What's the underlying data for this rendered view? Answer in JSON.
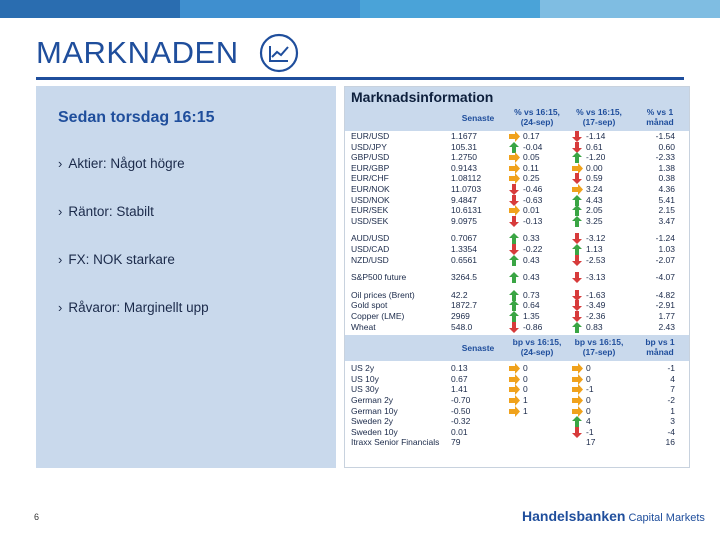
{
  "colors": {
    "brand": "#1f4e9c",
    "panel": "#c9d9ec",
    "up": "#3aa544",
    "down": "#d73b3b",
    "flat": "#f0a21c"
  },
  "topbar_colors": [
    "#2a6db0",
    "#3f8fcf",
    "#4aa3d8",
    "#7fbde2",
    "#b9d6ea"
  ],
  "title": "MARKNADEN",
  "title_icon": "line-chart-icon",
  "subtitle": "Sedan torsdag 16:15",
  "bullets": [
    "Aktier: Något högre",
    "Räntor: Stabilt",
    "FX: NOK starkare",
    "Råvaror: Marginellt upp"
  ],
  "market": {
    "title": "Marknadsinformation",
    "headers1": [
      "Senaste",
      "% vs 16:15, (24-sep)",
      "% vs 16:15, (17-sep)",
      "% vs 1 månad"
    ],
    "headers2": [
      "Senaste",
      "bp vs 16:15, (24-sep)",
      "bp vs 16:15, (17-sep)",
      "bp vs 1 månad"
    ],
    "groups": [
      [
        {
          "name": "EUR/USD",
          "last": "1.1677",
          "a1": "flat",
          "v1": "0.17",
          "a2": "down",
          "v2": "-1.14",
          "v3": "-1.54"
        },
        {
          "name": "USD/JPY",
          "last": "105.31",
          "a1": "up",
          "v1": "-0.04",
          "a2": "down",
          "v2": "0.61",
          "v3": "0.60"
        },
        {
          "name": "GBP/USD",
          "last": "1.2750",
          "a1": "flat",
          "v1": "0.05",
          "a2": "up",
          "v2": "-1.20",
          "v3": "-2.33"
        },
        {
          "name": "EUR/GBP",
          "last": "0.9143",
          "a1": "flat",
          "v1": "0.11",
          "a2": "flat",
          "v2": "0.00",
          "v3": "1.38"
        },
        {
          "name": "EUR/CHF",
          "last": "1.08112",
          "a1": "flat",
          "v1": "0.25",
          "a2": "down",
          "v2": "0.59",
          "v3": "0.38"
        },
        {
          "name": "EUR/NOK",
          "last": "11.0703",
          "a1": "down",
          "v1": "-0.46",
          "a2": "flat",
          "v2": "3.24",
          "v3": "4.36"
        },
        {
          "name": "USD/NOK",
          "last": "9.4847",
          "a1": "down",
          "v1": "-0.63",
          "a2": "up",
          "v2": "4.43",
          "v3": "5.41"
        },
        {
          "name": "EUR/SEK",
          "last": "10.6131",
          "a1": "flat",
          "v1": "0.01",
          "a2": "up",
          "v2": "2.05",
          "v3": "2.15"
        },
        {
          "name": "USD/SEK",
          "last": "9.0975",
          "a1": "down",
          "v1": "-0.13",
          "a2": "up",
          "v2": "3.25",
          "v3": "3.47"
        }
      ],
      [
        {
          "name": "AUD/USD",
          "last": "0.7067",
          "a1": "up",
          "v1": "0.33",
          "a2": "down",
          "v2": "-3.12",
          "v3": "-1.24"
        },
        {
          "name": "USD/CAD",
          "last": "1.3354",
          "a1": "down",
          "v1": "-0.22",
          "a2": "up",
          "v2": "1.13",
          "v3": "1.03"
        },
        {
          "name": "NZD/USD",
          "last": "0.6561",
          "a1": "up",
          "v1": "0.43",
          "a2": "down",
          "v2": "-2.53",
          "v3": "-2.07"
        }
      ],
      [
        {
          "name": "S&P500 future",
          "last": "3264.5",
          "a1": "up",
          "v1": "0.43",
          "a2": "down",
          "v2": "-3.13",
          "v3": "-4.07"
        }
      ],
      [
        {
          "name": "Oil prices (Brent)",
          "last": "42.2",
          "a1": "up",
          "v1": "0.73",
          "a2": "down",
          "v2": "-1.63",
          "v3": "-4.82"
        },
        {
          "name": "Gold spot",
          "last": "1872.7",
          "a1": "up",
          "v1": "0.64",
          "a2": "down",
          "v2": "-3.49",
          "v3": "-2.91"
        },
        {
          "name": "Copper (LME)",
          "last": "2969",
          "a1": "up",
          "v1": "1.35",
          "a2": "down",
          "v2": "-2.36",
          "v3": "1.77"
        },
        {
          "name": "Wheat",
          "last": "548.0",
          "a1": "down",
          "v1": "-0.86",
          "a2": "up",
          "v2": "0.83",
          "v3": "2.43"
        }
      ]
    ],
    "rates": [
      {
        "name": "US 2y",
        "last": "0.13",
        "a1": "flat",
        "v1": "0",
        "a2": "flat",
        "v2": "0",
        "v3": "-1"
      },
      {
        "name": "US 10y",
        "last": "0.67",
        "a1": "flat",
        "v1": "0",
        "a2": "flat",
        "v2": "0",
        "v3": "4"
      },
      {
        "name": "US 30y",
        "last": "1.41",
        "a1": "flat",
        "v1": "0",
        "a2": "flat",
        "v2": "-1",
        "v3": "7"
      },
      {
        "name": "German 2y",
        "last": "-0.70",
        "a1": "flat",
        "v1": "1",
        "a2": "flat",
        "v2": "0",
        "v3": "-2"
      },
      {
        "name": "German 10y",
        "last": "-0.50",
        "a1": "flat",
        "v1": "1",
        "a2": "flat",
        "v2": "0",
        "v3": "1"
      },
      {
        "name": "Sweden 2y",
        "last": "-0.32",
        "a1": "",
        "v1": "",
        "a2": "up",
        "v2": "4",
        "v3": "3"
      },
      {
        "name": "Sweden 10y",
        "last": "0.01",
        "a1": "",
        "v1": "",
        "a2": "down",
        "v2": "-1",
        "v3": "-4"
      },
      {
        "name": "Itraxx Senior Financials",
        "last": "79",
        "a1": "",
        "v1": "",
        "a2": "",
        "v2": "17",
        "v3": "16"
      }
    ]
  },
  "page_number": "6",
  "logo": {
    "name": "Handelsbanken",
    "suffix": "Capital Markets"
  }
}
